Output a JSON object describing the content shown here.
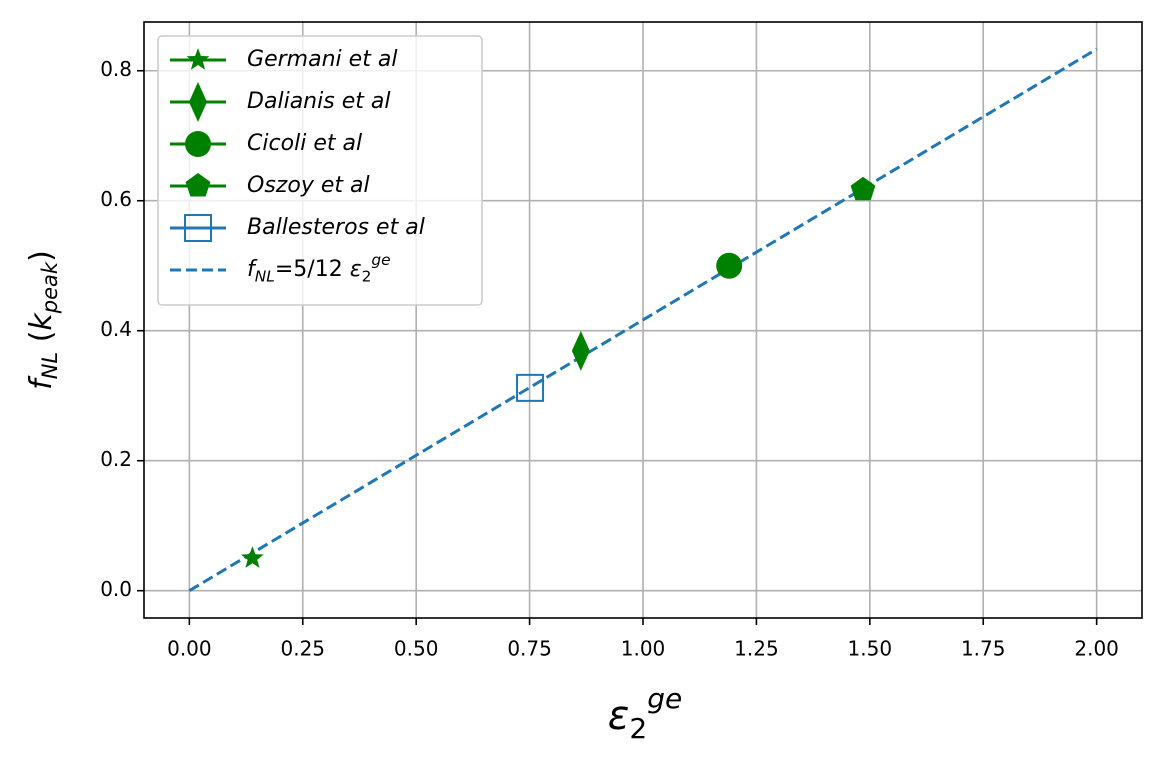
{
  "chart_data": {
    "type": "scatter",
    "x_label": "ε_2^{ge}",
    "y_label": "f_{NL} (k_{peak})",
    "xlim": [
      -0.1,
      2.1
    ],
    "ylim": [
      -0.042,
      0.875
    ],
    "xticks": [
      {
        "value": 0,
        "label": "0.00"
      },
      0.25,
      {
        "value": 0.5,
        "label": "0.50"
      },
      0.75,
      {
        "value": 1,
        "label": "1.00"
      },
      1.25,
      {
        "value": 1.5,
        "label": "1.50"
      },
      1.75,
      {
        "value": 2,
        "label": "2.00"
      }
    ],
    "yticks": [
      {
        "value": 0,
        "label": "0.0"
      },
      0.2,
      0.4,
      0.6,
      0.8
    ],
    "grid": true,
    "legend": "upper left",
    "series": [
      {
        "name": "Germani et al",
        "color": "#008000",
        "marker": "star",
        "x": [
          0.139
        ],
        "values": [
          0.05
        ]
      },
      {
        "name": "Dalianis et al",
        "color": "#008000",
        "marker": "diamond",
        "x": [
          0.863
        ],
        "values": [
          0.369
        ]
      },
      {
        "name": "Cicoli et al",
        "color": "#008000",
        "marker": "circle",
        "x": [
          1.19
        ],
        "values": [
          0.5
        ]
      },
      {
        "name": "Oszoy et al",
        "color": "#008000",
        "marker": "pentagon",
        "x": [
          1.485
        ],
        "values": [
          0.617
        ]
      },
      {
        "name": "Ballesteros et al",
        "color": "#1f77b4",
        "marker": "open-square",
        "x": [
          0.751
        ],
        "values": [
          0.312
        ]
      },
      {
        "name": "f_{NL}=5/12 ε_2^{ge}",
        "color": "#1f77b4",
        "kind": "dashed-line",
        "x": [
          0,
          2
        ],
        "values": [
          0,
          0.8333
        ]
      }
    ]
  }
}
